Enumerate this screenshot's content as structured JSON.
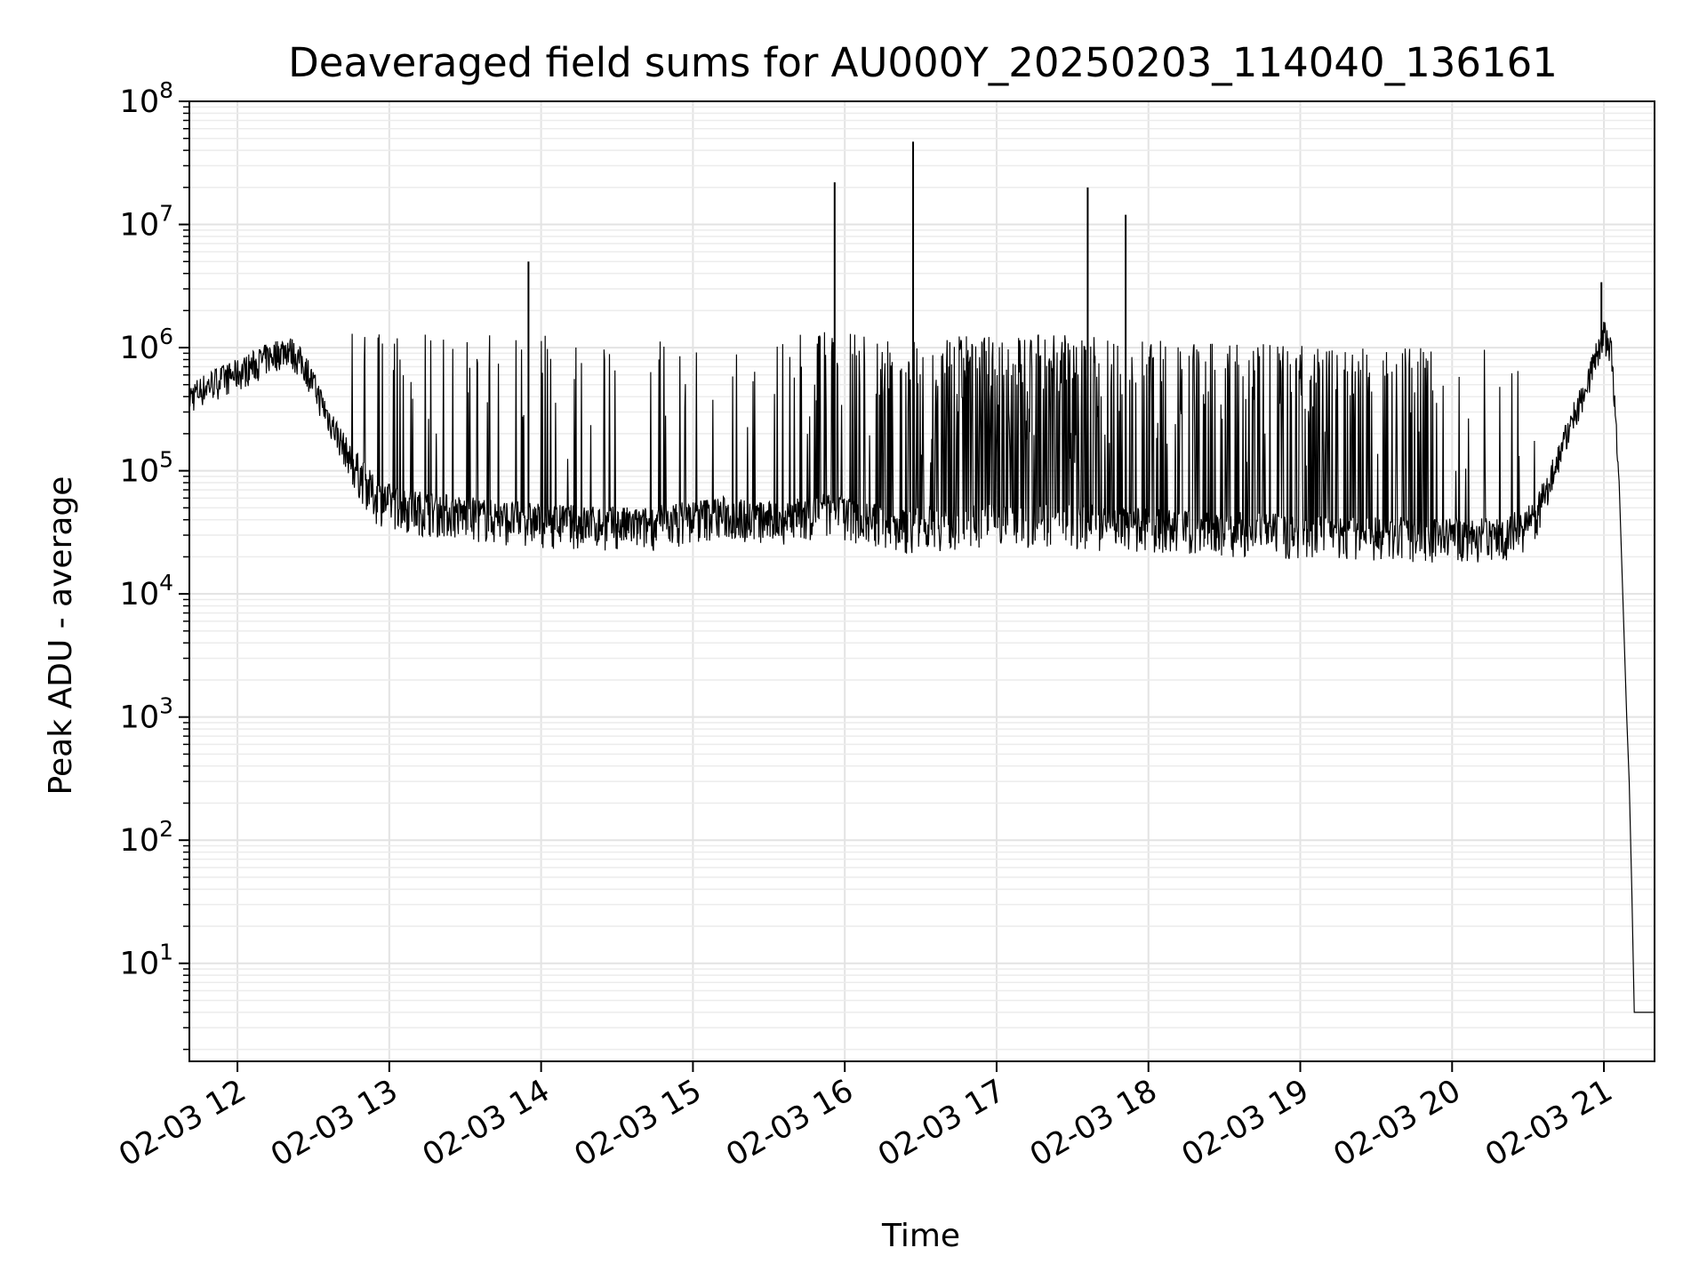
{
  "chart_data": {
    "type": "line",
    "title": "Deaveraged field sums for AU000Y_20250203_114040_136161",
    "xlabel": "Time",
    "ylabel": "Peak ADU - average",
    "yscale": "log",
    "ylim": [
      1.6,
      100000000
    ],
    "xlim": [
      "2025-02-03 11:41",
      "2025-02-03 21:20"
    ],
    "grid": true,
    "line_color": "#000000",
    "x_ticks": [
      "02-03 12",
      "02-03 13",
      "02-03 14",
      "02-03 15",
      "02-03 16",
      "02-03 17",
      "02-03 18",
      "02-03 19",
      "02-03 20",
      "02-03 21"
    ],
    "x_tick_hours": [
      12,
      13,
      14,
      15,
      16,
      17,
      18,
      19,
      20,
      21
    ],
    "y_ticks": [
      {
        "value": 10,
        "base": "10",
        "exp": "1"
      },
      {
        "value": 100,
        "base": "10",
        "exp": "2"
      },
      {
        "value": 1000,
        "base": "10",
        "exp": "3"
      },
      {
        "value": 10000,
        "base": "10",
        "exp": "4"
      },
      {
        "value": 100000,
        "base": "10",
        "exp": "5"
      },
      {
        "value": 1000000,
        "base": "10",
        "exp": "6"
      },
      {
        "value": 10000000,
        "base": "10",
        "exp": "7"
      },
      {
        "value": 100000000,
        "base": "10",
        "exp": "8"
      }
    ],
    "series": [
      {
        "points": [
          [
            "2025-02-03 11:41",
            400000
          ],
          [
            "2025-02-03 11:50",
            520000
          ],
          [
            "2025-02-03 12:00",
            620000
          ],
          [
            "2025-02-03 12:10",
            800000
          ],
          [
            "2025-02-03 12:20",
            1000000
          ],
          [
            "2025-02-03 12:27",
            700000
          ],
          [
            "2025-02-03 12:35",
            300000
          ],
          [
            "2025-02-03 12:45",
            120000
          ],
          [
            "2025-02-03 12:55",
            60000
          ],
          [
            "2025-02-03 13:10",
            50000
          ],
          [
            "2025-02-03 13:40",
            42000
          ],
          [
            "2025-02-03 14:10",
            38000
          ],
          [
            "2025-02-03 14:40",
            36000
          ],
          [
            "2025-02-03 15:10",
            45000
          ],
          [
            "2025-02-03 15:30",
            40000
          ],
          [
            "2025-02-03 15:55",
            48000
          ],
          [
            "2025-02-03 16:20",
            35000
          ],
          [
            "2025-02-03 16:50",
            38000
          ],
          [
            "2025-02-03 17:20",
            40000
          ],
          [
            "2025-02-03 17:50",
            36000
          ],
          [
            "2025-02-03 18:20",
            34000
          ],
          [
            "2025-02-03 18:50",
            32000
          ],
          [
            "2025-02-03 19:20",
            30000
          ],
          [
            "2025-02-03 19:50",
            30000
          ],
          [
            "2025-02-03 20:20",
            30000
          ],
          [
            "2025-02-03 20:33",
            40000
          ],
          [
            "2025-02-03 20:43",
            150000
          ],
          [
            "2025-02-03 20:53",
            500000
          ],
          [
            "2025-02-03 21:00",
            1300000
          ],
          [
            "2025-02-03 21:03",
            900000
          ],
          [
            "2025-02-03 21:06",
            80000
          ],
          [
            "2025-02-03 21:09",
            1000
          ],
          [
            "2025-02-03 21:10",
            300
          ],
          [
            "2025-02-03 21:11",
            40
          ],
          [
            "2025-02-03 21:12",
            4
          ],
          [
            "2025-02-03 21:20",
            4
          ]
        ],
        "spikes": [
          [
            "2025-02-03 13:55",
            5000000
          ],
          [
            "2025-02-03 15:56",
            22000000
          ],
          [
            "2025-02-03 16:27",
            47000000
          ],
          [
            "2025-02-03 17:36",
            20000000
          ],
          [
            "2025-02-03 17:51",
            12000000
          ],
          [
            "2025-02-03 20:59",
            3400000
          ]
        ]
      }
    ]
  }
}
